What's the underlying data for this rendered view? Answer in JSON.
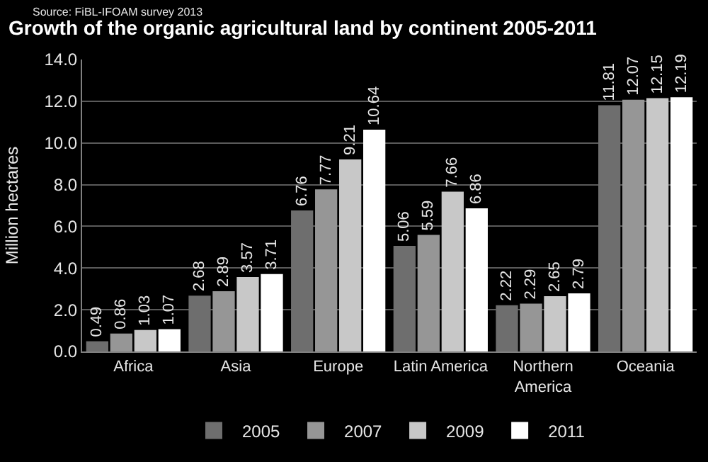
{
  "chart_data": {
    "type": "bar",
    "title": "Growth of the organic agricultural land by continent 2005-2011",
    "subtitle": "Source: FiBL-IFOAM survey 2013",
    "ylabel": "Million hectares",
    "categories": [
      "Africa",
      "Asia",
      "Europe",
      "Latin America",
      "Northern America",
      "Oceania"
    ],
    "series": [
      {
        "name": "2005",
        "color": "#6e6e6e",
        "values": [
          0.49,
          2.68,
          6.76,
          5.06,
          2.22,
          11.81
        ]
      },
      {
        "name": "2007",
        "color": "#969696",
        "values": [
          0.86,
          2.89,
          7.77,
          5.59,
          2.29,
          12.07
        ]
      },
      {
        "name": "2009",
        "color": "#c8c8c8",
        "values": [
          1.03,
          3.57,
          9.21,
          7.66,
          2.65,
          12.15
        ]
      },
      {
        "name": "2011",
        "color": "#ffffff",
        "values": [
          1.07,
          3.71,
          10.64,
          6.86,
          2.79,
          12.19
        ]
      }
    ],
    "ylim": [
      0,
      14
    ],
    "yticks": [
      {
        "value": 0,
        "label": "0.0"
      },
      {
        "value": 2,
        "label": "2.0"
      },
      {
        "value": 4,
        "label": "4.0"
      },
      {
        "value": 6,
        "label": "6.0"
      },
      {
        "value": 8,
        "label": "8.0"
      },
      {
        "value": 10,
        "label": "10.0"
      },
      {
        "value": 12,
        "label": "12.0"
      },
      {
        "value": 14,
        "label": "14.0"
      }
    ],
    "grid": "y",
    "legend": "bottom",
    "data_labels": true
  }
}
